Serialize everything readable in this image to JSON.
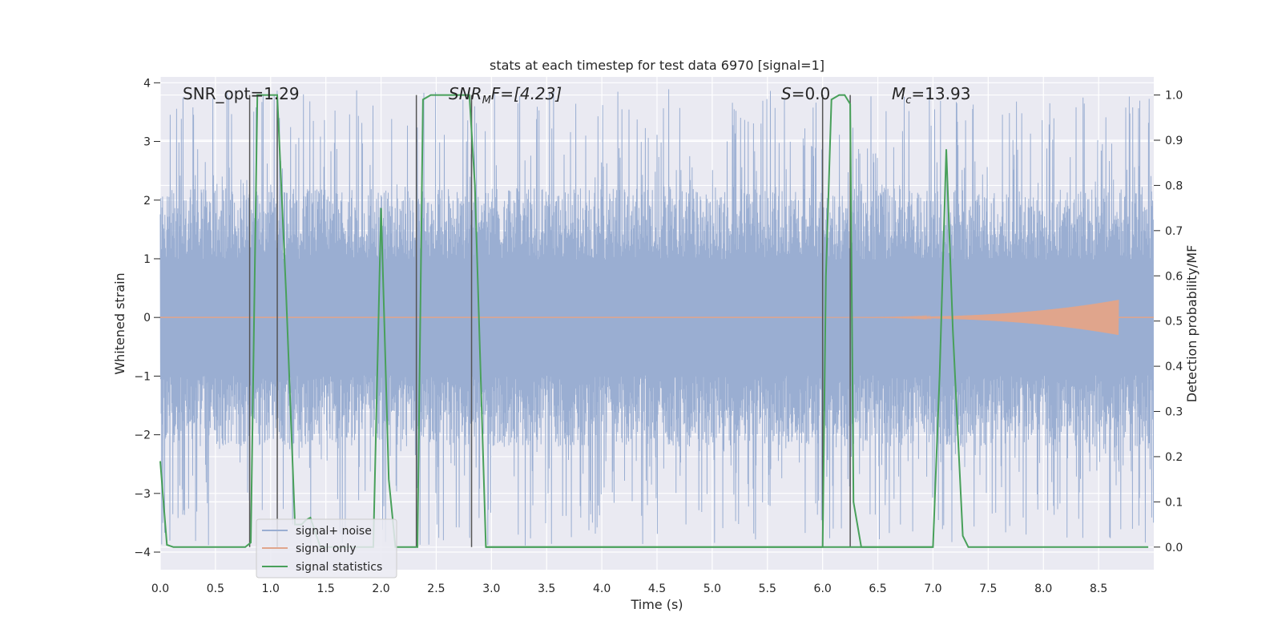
{
  "chart_data": {
    "type": "line",
    "title": "stats at each timestep for test data 6970 [signal=1]",
    "xlabel": "Time (s)",
    "ylabel_left": "Whitened strain",
    "ylabel_right": "Detection probability/MF",
    "xlim": [
      0.0,
      9.0
    ],
    "ylim_left": [
      -4.3,
      4.1
    ],
    "ylim_right": [
      -0.05,
      1.04
    ],
    "x_ticks": [
      "0.0",
      "0.5",
      "1.0",
      "1.5",
      "2.0",
      "2.5",
      "3.0",
      "3.5",
      "4.0",
      "4.5",
      "5.0",
      "5.5",
      "6.0",
      "6.5",
      "7.0",
      "7.5",
      "8.0",
      "8.5"
    ],
    "x_tick_values": [
      0.0,
      0.5,
      1.0,
      1.5,
      2.0,
      2.5,
      3.0,
      3.5,
      4.0,
      4.5,
      5.0,
      5.5,
      6.0,
      6.5,
      7.0,
      7.5,
      8.0,
      8.5
    ],
    "y_left_ticks": [
      "−4",
      "−3",
      "−2",
      "−1",
      "0",
      "1",
      "2",
      "3",
      "4"
    ],
    "y_left_tick_values": [
      -4,
      -3,
      -2,
      -1,
      0,
      1,
      2,
      3,
      4
    ],
    "y_right_ticks": [
      "0.0",
      "0.1",
      "0.2",
      "0.3",
      "0.4",
      "0.5",
      "0.6",
      "0.7",
      "0.8",
      "0.9",
      "1.0"
    ],
    "y_right_tick_values": [
      0.0,
      0.1,
      0.2,
      0.3,
      0.4,
      0.5,
      0.6,
      0.7,
      0.8,
      0.9,
      1.0
    ],
    "grid": true,
    "legend_placement": "lower-left",
    "annotations": {
      "snr_opt": "SNR_opt=1.29",
      "snr_mf_base": "SNR",
      "snr_mf_sub": "M",
      "snr_mf_rest": "F=[4.23]",
      "s_base": "S",
      "s_rest": "=0.0",
      "mc_base": "M",
      "mc_sub": "c",
      "mc_rest": "=13.93"
    },
    "vertical_lines": [
      0.81,
      1.06,
      2.32,
      2.82,
      6.0,
      6.25
    ],
    "series": [
      {
        "name": "signal+ noise",
        "color": "#9aaed2",
        "noise_envelope": 2.2,
        "peak_amplitude": 3.9
      },
      {
        "name": "signal only",
        "color": "#e0a58c",
        "chirp_end": 8.68,
        "chirp_max_amplitude": 0.3
      },
      {
        "name": "signal statistics",
        "color": "#48a05a",
        "x": [
          0.0,
          0.06,
          0.12,
          0.77,
          0.82,
          0.88,
          1.06,
          1.14,
          1.22,
          1.28,
          1.32,
          1.36,
          1.45,
          1.93,
          2.0,
          2.07,
          2.13,
          2.33,
          2.38,
          2.45,
          2.8,
          2.85,
          2.95,
          7.0,
          7.06,
          7.12,
          7.18,
          7.27,
          7.32,
          7.4,
          8.95
        ],
        "y": [
          0.19,
          0.005,
          0.0,
          0.0,
          0.01,
          1.0,
          1.0,
          0.56,
          0.05,
          0.05,
          0.06,
          0.065,
          0.0,
          0.0,
          0.75,
          0.15,
          0.0,
          0.0,
          0.99,
          1.0,
          1.0,
          0.8,
          0.0,
          0.0,
          0.38,
          0.88,
          0.48,
          0.025,
          0.0,
          0.0,
          0.0
        ]
      },
      {
        "name": "",
        "color": "#48a05a",
        "x": [
          2.95,
          6.0,
          6.03,
          6.08,
          6.15,
          6.2,
          6.25,
          6.28,
          6.35,
          6.5,
          7.0
        ],
        "y": [
          0.0,
          0.0,
          0.6,
          0.99,
          1.0,
          1.0,
          0.98,
          0.1,
          0.0,
          0.0,
          0.0
        ]
      }
    ],
    "legend": [
      {
        "label": "signal+ noise",
        "color": "#9aaed2"
      },
      {
        "label": "signal only",
        "color": "#e0a58c"
      },
      {
        "label": "signal statistics",
        "color": "#48a05a"
      }
    ]
  }
}
